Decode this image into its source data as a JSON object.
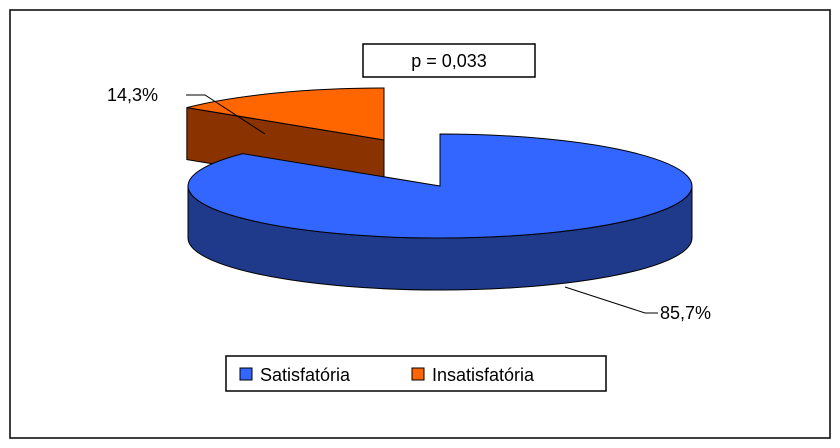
{
  "chart_data": {
    "type": "pie",
    "style": "3d-exploded",
    "categories": [
      "Satisfatória",
      "Insatisfatória"
    ],
    "values": [
      85.7,
      14.3
    ],
    "value_labels": [
      "85,7%",
      "14,3%"
    ],
    "colors": [
      "#3366FF",
      "#FF6600"
    ],
    "side_colors": [
      "#1F3A8A",
      "#8B3300"
    ],
    "annotation": "p = 0,033",
    "legend": {
      "placement": "bottom",
      "items": [
        {
          "label": "Satisfatória",
          "color": "#3366FF"
        },
        {
          "label": "Insatisfatória",
          "color": "#FF6600"
        }
      ]
    }
  }
}
